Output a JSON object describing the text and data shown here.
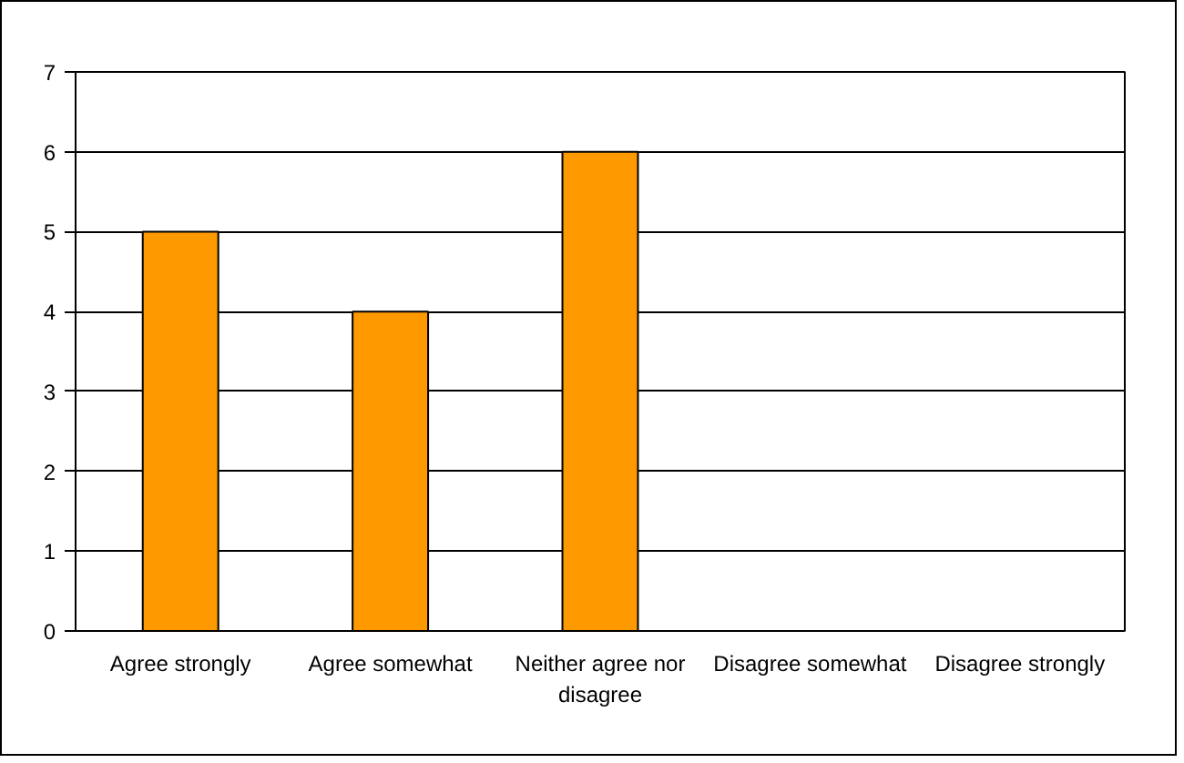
{
  "chart_data": {
    "type": "bar",
    "categories": [
      "Agree strongly",
      "Agree somewhat",
      "Neither agree nor disagree",
      "Disagree somewhat",
      "Disagree strongly"
    ],
    "values": [
      5,
      4,
      6,
      0,
      0
    ],
    "color": "#ff9900",
    "ylim": [
      0,
      7
    ],
    "yticks": [
      0,
      1,
      2,
      3,
      4,
      5,
      6,
      7
    ],
    "grid": "y"
  }
}
